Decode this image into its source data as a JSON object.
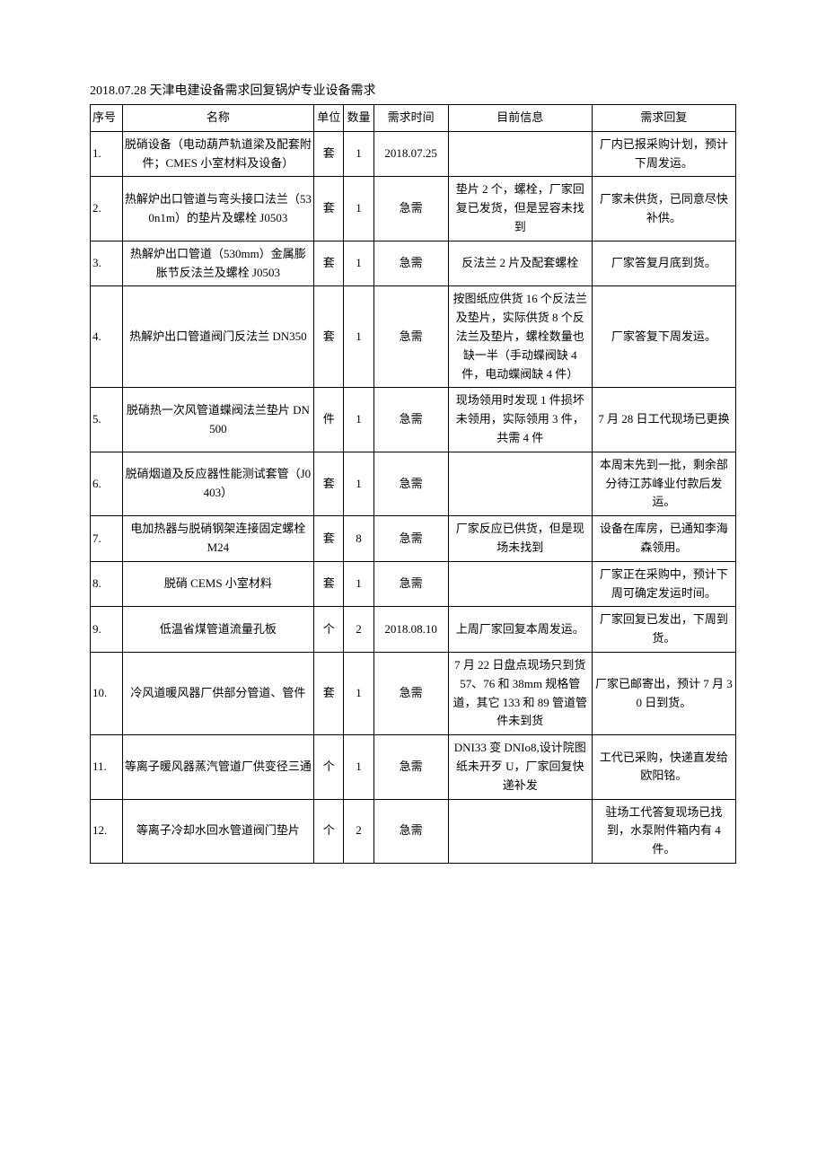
{
  "title": "2018.07.28 天津电建设备需求回复锅炉专业设备需求",
  "columns": {
    "seq": "序号",
    "name": "名称",
    "unit": "单位",
    "qty": "数量",
    "time": "需求时间",
    "info": "目前信息",
    "reply": "需求回复"
  },
  "rows": [
    {
      "seq": "1.",
      "name": "脱硝设备（电动葫芦轨道梁及配套附件；CMES 小室材料及设备）",
      "unit": "套",
      "qty": "1",
      "time": "2018.07.25",
      "info": "",
      "reply": "厂内已报采购计划，预计下周发运。"
    },
    {
      "seq": "2.",
      "name": "热解炉出口管道与弯头接口法兰（530n1m）的垫片及螺栓 J0503",
      "unit": "套",
      "qty": "1",
      "time": "急需",
      "info": "垫片 2 个，螺栓，厂家回复已发货，但是昱容未找到",
      "reply": "厂家未供货，已同意尽快补供。"
    },
    {
      "seq": "3.",
      "name": "热解炉出口管道（530mm）金属膨胀节反法兰及螺栓 J0503",
      "unit": "套",
      "qty": "1",
      "time": "急需",
      "info": "反法兰 2 片及配套螺栓",
      "reply": "厂家答复月底到货。"
    },
    {
      "seq": "4.",
      "name": "热解炉出口管道阀门反法兰 DN350",
      "unit": "套",
      "qty": "1",
      "time": "急需",
      "info": "按图纸应供货 16 个反法兰及垫片，实际供货 8 个反法兰及垫片，螺栓数量也缺一半（手动蝶阀缺 4 件，电动蝶阀缺 4 件）",
      "reply": "厂家答复下周发运。"
    },
    {
      "seq": "5.",
      "name": "脱硝热一次风管道蝶阀法兰垫片 DN500",
      "unit": "件",
      "qty": "1",
      "time": "急需",
      "info": "现场领用时发现 1 件损坏未领用，实际领用 3 件，共需 4 件",
      "reply": "7 月 28 日工代现场已更换"
    },
    {
      "seq": "6.",
      "name": "脱硝烟道及反应器性能测试套管（J0403）",
      "unit": "套",
      "qty": "1",
      "time": "急需",
      "info": "",
      "reply": "本周末先到一批，剩余部分待江苏峰业付款后发运。"
    },
    {
      "seq": "7.",
      "name": "电加热器与脱硝钢架连接固定螺栓 M24",
      "unit": "套",
      "qty": "8",
      "time": "急需",
      "info": "厂家反应已供货，但是现场未找到",
      "reply": "设备在库房，已通知李海森领用。"
    },
    {
      "seq": "8.",
      "name": "脱硝 CEMS 小室材料",
      "unit": "套",
      "qty": "1",
      "time": "急需",
      "info": "",
      "reply": "厂家正在采购中，预计下周可确定发运时间。"
    },
    {
      "seq": "9.",
      "name": "低温省煤管道流量孔板",
      "unit": "个",
      "qty": "2",
      "time": "2018.08.10",
      "info": "上周厂家回复本周发运。",
      "reply": "厂家回复已发出，下周到货。"
    },
    {
      "seq": "10.",
      "name": "冷风道暖风器厂供部分管道、管件",
      "unit": "套",
      "qty": "1",
      "time": "急需",
      "info": "7 月 22 日盘点现场只到货 57、76 和 38mm 规格管道，其它 133 和 89 管道管件未到货",
      "reply": "厂家已邮寄出，预计 7 月 30 日到货。"
    },
    {
      "seq": "11.",
      "name": "等离子暖风器蒸汽管道厂供变径三通",
      "unit": "个",
      "qty": "1",
      "time": "急需",
      "info": "DNI33 变 DNIo8,设计院图纸未开歹 U，厂家回复快递补发",
      "reply": "工代已采购，快递直发给欧阳铭。"
    },
    {
      "seq": "12.",
      "name": "等离子冷却水回水管道阀门垫片",
      "unit": "个",
      "qty": "2",
      "time": "急需",
      "info": "",
      "reply": "驻场工代答复现场已找到，水泵附件箱内有 4 件。"
    }
  ]
}
